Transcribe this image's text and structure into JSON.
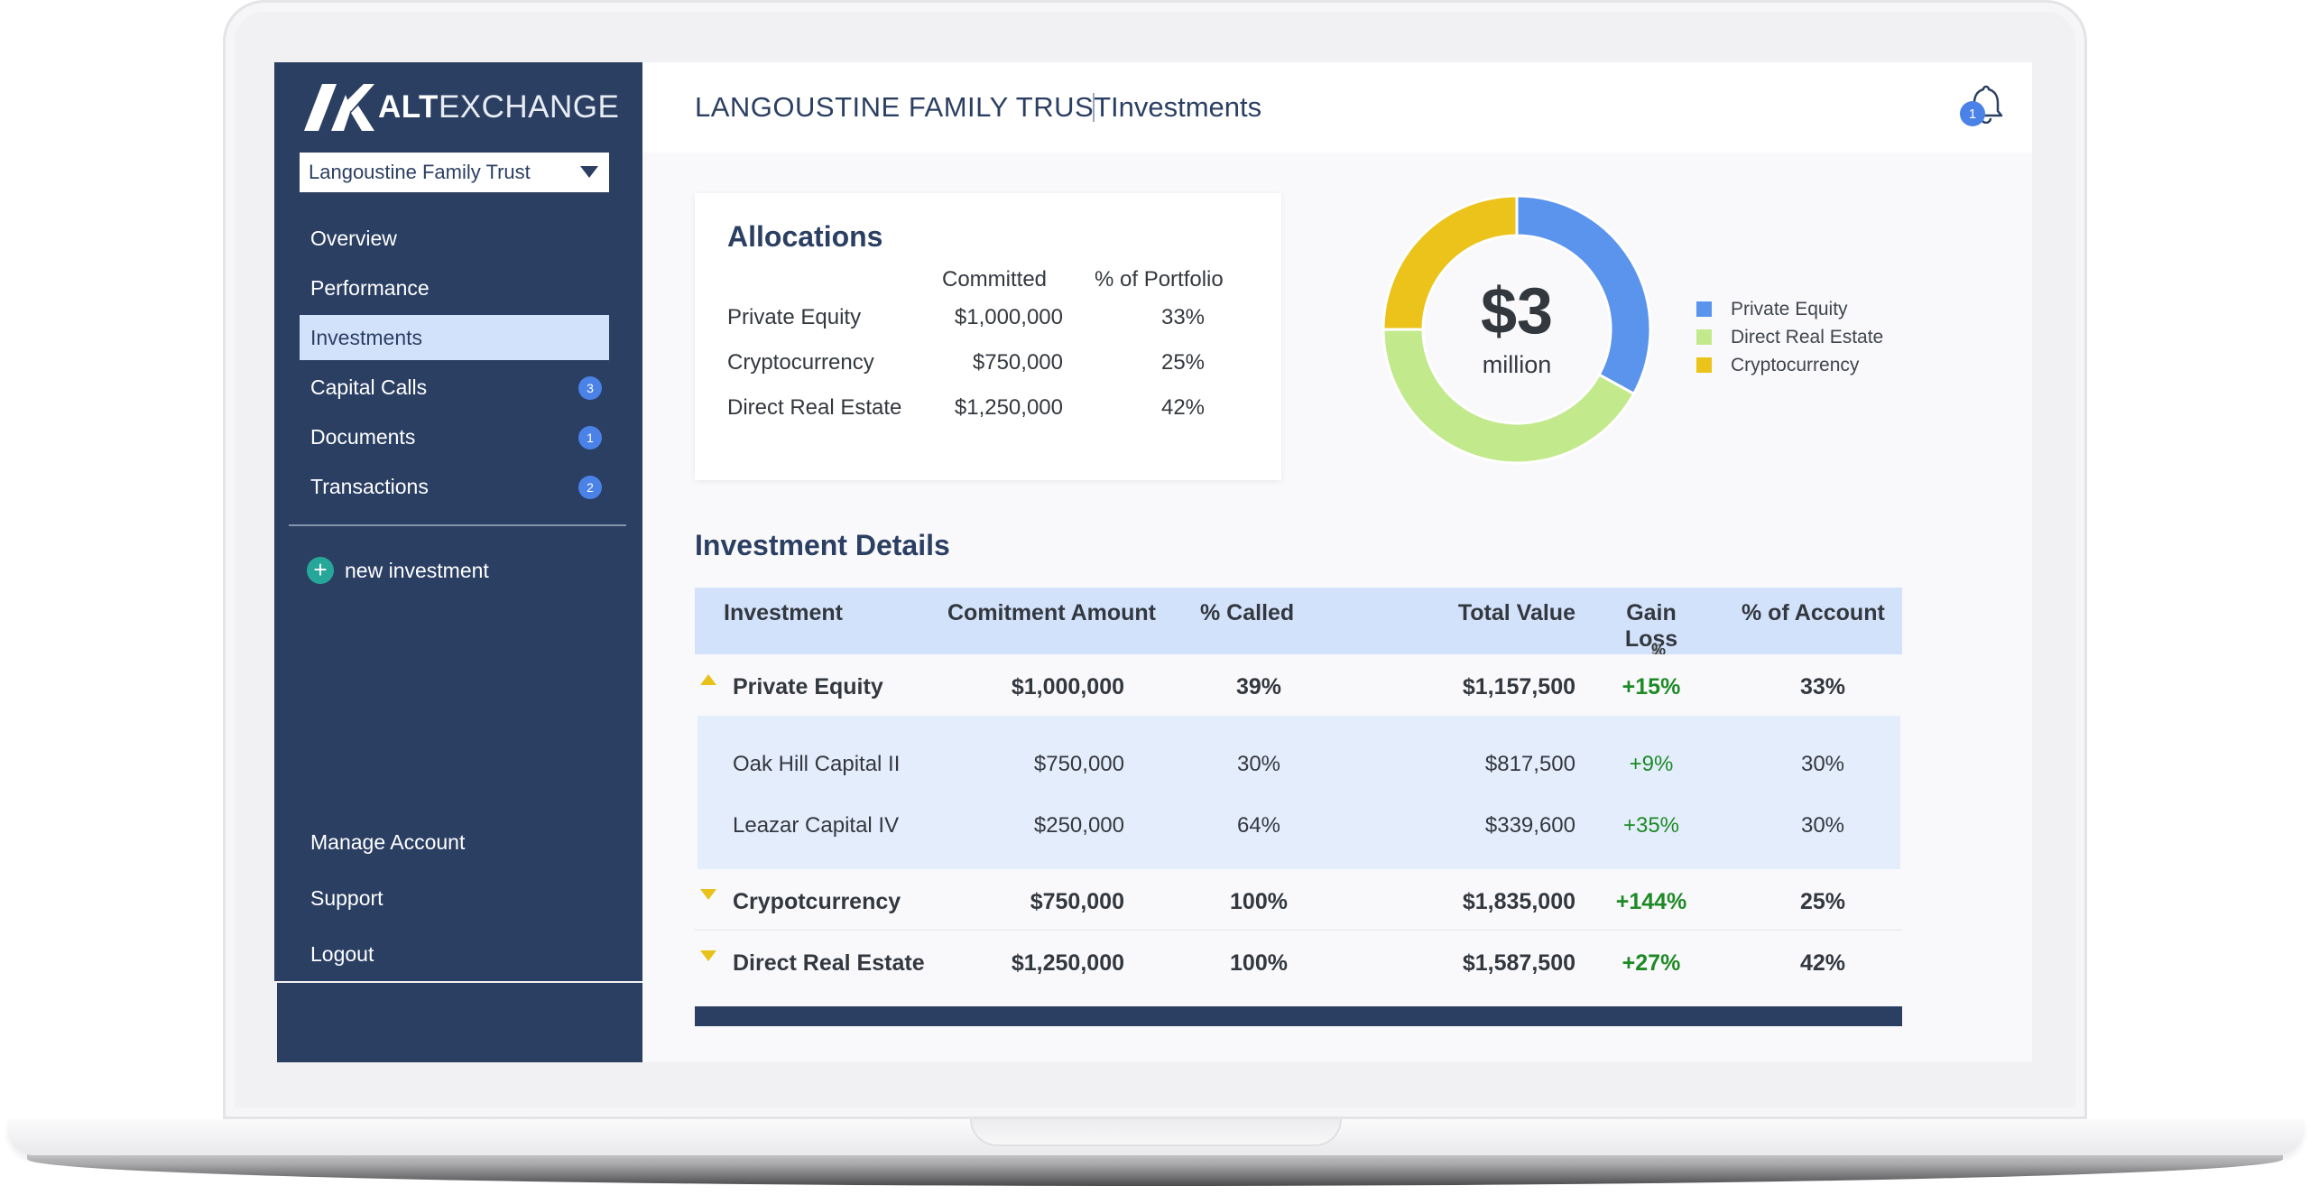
{
  "sidebar": {
    "logo": {
      "bold": "ALT",
      "light": "EXCHANGE"
    },
    "account_select": "Langoustine Family Trust",
    "nav": [
      {
        "label": "Overview",
        "badge": ""
      },
      {
        "label": "Performance",
        "badge": ""
      },
      {
        "label": "Investments",
        "badge": "",
        "active": true
      },
      {
        "label": "Capital Calls",
        "badge": "3"
      },
      {
        "label": "Documents",
        "badge": "1"
      },
      {
        "label": "Transactions",
        "badge": "2"
      }
    ],
    "new_investment": "new investment",
    "bottom_nav": [
      "Manage Account",
      "Support",
      "Logout"
    ]
  },
  "header": {
    "org_name": "LANGOUSTINE FAMILY TRUST",
    "page_title": "Investments",
    "notification_count": "1"
  },
  "allocations": {
    "title": "Allocations",
    "col_committed": "Committed",
    "col_pct": "% of Portfolio",
    "rows": [
      {
        "name": "Private Equity",
        "committed": "$1,000,000",
        "pct": "33%"
      },
      {
        "name": "Cryptocurrency",
        "committed": "$750,000",
        "pct": "25%"
      },
      {
        "name": "Direct Real Estate",
        "committed": "$1,250,000",
        "pct": "42%"
      }
    ]
  },
  "donut": {
    "center_value": "$3",
    "center_unit": "million",
    "segments": [
      {
        "name": "Private Equity",
        "pct": 33,
        "color": "#5b94ec"
      },
      {
        "name": "Direct Real Estate",
        "pct": 42,
        "color": "#c2ea8d"
      },
      {
        "name": "Cryptocurrency",
        "pct": 25,
        "color": "#ecc31a"
      }
    ],
    "legend": [
      "Private Equity",
      "Direct Real Estate",
      "Cryptocurrency"
    ]
  },
  "details": {
    "title": "Investment Details",
    "columns": {
      "investment": "Investment",
      "commitment": "Comitment Amount",
      "called": "% Called",
      "total": "Total Value",
      "gain": "Gain Loss",
      "gain_sub_dollar": "$",
      "gain_sub_sep": "|",
      "gain_sub_pct": "%",
      "account": "% of Account"
    },
    "groups": [
      {
        "name": "Private Equity",
        "commitment": "$1,000,000",
        "called": "39%",
        "total": "$1,157,500",
        "gain": "+15%",
        "account": "33%",
        "children": [
          {
            "name": "Oak Hill Capital II",
            "commitment": "$750,000",
            "called": "30%",
            "total": "$817,500",
            "gain": "+9%",
            "account": "30%"
          },
          {
            "name": "Leazar Capital IV",
            "commitment": "$250,000",
            "called": "64%",
            "total": "$339,600",
            "gain": "+35%",
            "account": "30%"
          }
        ]
      },
      {
        "name": "Crypotcurrency",
        "commitment": "$750,000",
        "called": "100%",
        "total": "$1,835,000",
        "gain": "+144%",
        "account": "25%"
      },
      {
        "name": "Direct Real Estate",
        "commitment": "$1,250,000",
        "called": "100%",
        "total": "$1,587,500",
        "gain": "+27%",
        "account": "42%"
      }
    ]
  },
  "colors": {
    "sidebar": "#2b3f63",
    "active_nav": "#d3e2fb",
    "badge": "#4b82e8",
    "gain": "#1e8a26",
    "accent_yellow": "#ecc31a"
  }
}
